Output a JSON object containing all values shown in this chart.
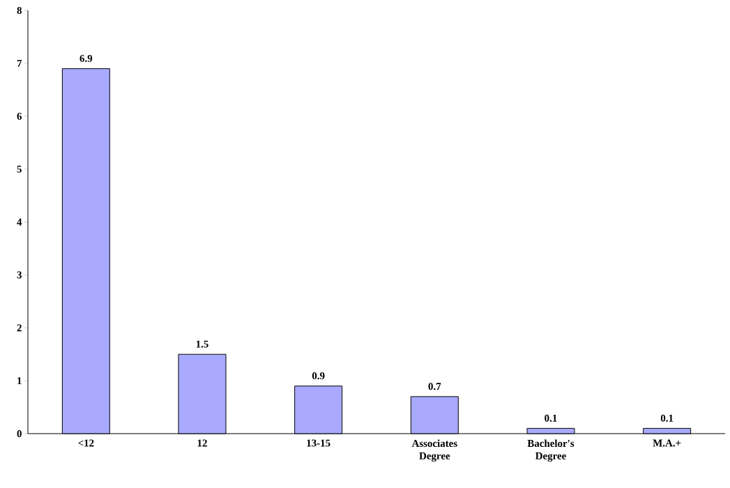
{
  "chart_data": {
    "type": "bar",
    "categories": [
      "<12",
      "12",
      "13-15",
      "Associates Degree",
      "Bachelor's Degree",
      "M.A.+"
    ],
    "values": [
      6.9,
      1.5,
      0.9,
      0.7,
      0.1,
      0.1
    ],
    "color": "#a9a9ff",
    "ylim": [
      0,
      8
    ],
    "yticks": [
      0,
      1,
      2,
      3,
      4,
      5,
      6,
      7,
      8
    ],
    "data_labels": true,
    "grid": false
  }
}
